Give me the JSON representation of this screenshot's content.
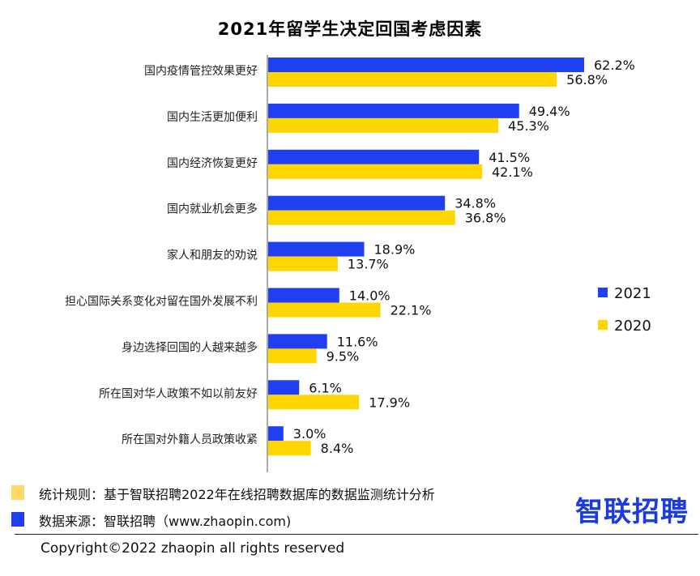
{
  "chart_data": {
    "type": "bar",
    "orientation": "horizontal",
    "title": "2021年留学生决定回国考虑因素",
    "categories": [
      "国内疫情管控效果更好",
      "国内生活更加便利",
      "国内经济恢复更好",
      "国内就业机会更多",
      "家人和朋友的劝说",
      "担心国际关系变化对留在国外发展不利",
      "身边选择回国的人越来越多",
      "所在国对华人政策不如以前友好",
      "所在国对外籍人员政策收紧"
    ],
    "series": [
      {
        "name": "2021",
        "color": "#1f3ff0",
        "values": [
          62.2,
          49.4,
          41.5,
          34.8,
          18.9,
          14.0,
          11.6,
          6.1,
          3.0
        ],
        "labels": [
          "62.2%",
          "49.4%",
          "41.5%",
          "34.8%",
          "18.9%",
          "14.0%",
          "11.6%",
          "6.1%",
          "3.0%"
        ]
      },
      {
        "name": "2020",
        "color": "#ffd600",
        "values": [
          56.8,
          45.3,
          42.1,
          36.8,
          13.7,
          22.1,
          9.5,
          17.9,
          8.4
        ],
        "labels": [
          "56.8%",
          "45.3%",
          "42.1%",
          "36.8%",
          "13.7%",
          "22.1%",
          "9.5%",
          "17.9%",
          "8.4%"
        ]
      }
    ],
    "legend_position": "right",
    "grid": false
  },
  "footer": {
    "rule_text": "统计规则：基于智联招聘2022年在线招聘数据库的数据监测统计分析",
    "rule_color": "#ffd966",
    "source_text": "数据来源：智联招聘（www.zhaopin.com)",
    "source_color": "#1f3ff0",
    "brand": "智联招聘",
    "copyright": "Copyright©2022 zhaopin all rights reserved"
  }
}
